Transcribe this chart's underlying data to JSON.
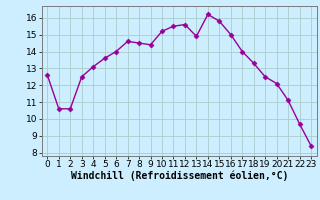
{
  "x": [
    0,
    1,
    2,
    3,
    4,
    5,
    6,
    7,
    8,
    9,
    10,
    11,
    12,
    13,
    14,
    15,
    16,
    17,
    18,
    19,
    20,
    21,
    22,
    23
  ],
  "y": [
    12.6,
    10.6,
    10.6,
    12.5,
    13.1,
    13.6,
    14.0,
    14.6,
    14.5,
    14.4,
    15.2,
    15.5,
    15.6,
    14.9,
    16.2,
    15.8,
    15.0,
    14.0,
    13.3,
    12.5,
    12.1,
    11.1,
    9.7,
    8.4
  ],
  "line_color": "#990099",
  "marker": "D",
  "markersize": 2.5,
  "linewidth": 1.0,
  "bg_color": "#cceeff",
  "grid_color": "#aacccc",
  "xlabel": "Windchill (Refroidissement éolien,°C)",
  "xlabel_fontsize": 7,
  "xlim": [
    -0.5,
    23.5
  ],
  "ylim": [
    7.8,
    16.7
  ],
  "yticks": [
    8,
    9,
    10,
    11,
    12,
    13,
    14,
    15,
    16
  ],
  "xticks": [
    0,
    1,
    2,
    3,
    4,
    5,
    6,
    7,
    8,
    9,
    10,
    11,
    12,
    13,
    14,
    15,
    16,
    17,
    18,
    19,
    20,
    21,
    22,
    23
  ],
  "tick_fontsize": 6.5,
  "figsize": [
    3.2,
    2.0
  ],
  "dpi": 100
}
